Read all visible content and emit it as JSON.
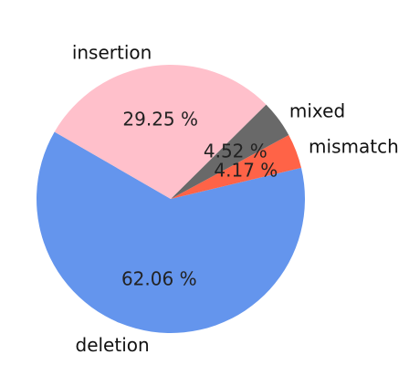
{
  "chart_data": {
    "type": "pie",
    "categories": [
      "deletion",
      "mismatch",
      "mixed",
      "insertion"
    ],
    "values": [
      62.06,
      4.17,
      4.52,
      29.25
    ],
    "data_labels": [
      "62.06 %",
      "4.17 %",
      "4.52 %",
      "29.25 %"
    ],
    "colors": [
      "#6495ED",
      "#FF6347",
      "#696969",
      "#FFC0CB"
    ],
    "title": "",
    "start_angle_deg": 150,
    "direction": "counterclockwise",
    "legend": "none"
  }
}
